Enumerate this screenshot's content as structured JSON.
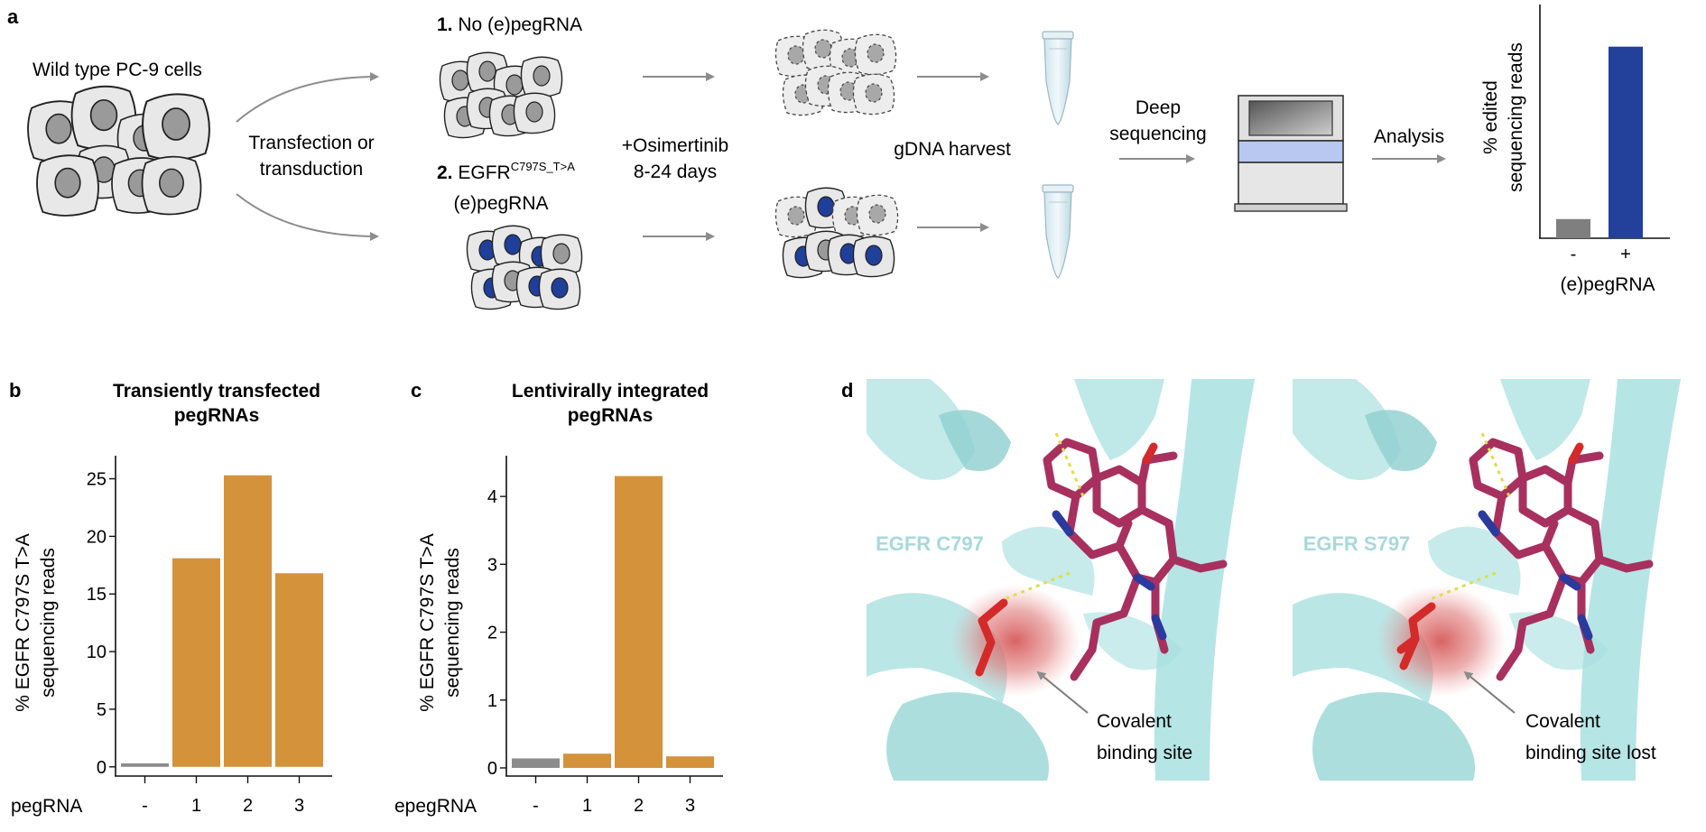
{
  "panel_a": {
    "label": "a",
    "wild_type": "Wild type PC-9 cells",
    "transfection": [
      "Transfection or",
      "transduction"
    ],
    "cond1_num": "1.",
    "cond1": "No (e)pegRNA",
    "cond2_num": "2.",
    "cond2_gene": "EGFR",
    "cond2_sup": "C797S_T>A",
    "cond2_line2": "(e)pegRNA",
    "osimertinib": [
      "+Osimertinib",
      "8-24 days"
    ],
    "gdna": "gDNA harvest",
    "deep_seq": [
      "Deep",
      "sequencing"
    ],
    "analysis": "Analysis",
    "colors": {
      "cell_fill": "#e8e8e8",
      "nucleus_gray": "#9a9a9a",
      "nucleus_blue": "#1f3f9a",
      "arrow": "#8c8c8c"
    }
  },
  "chart_data": [
    {
      "type": "bar",
      "panel": "a",
      "categories": [
        "-",
        "+"
      ],
      "values": [
        10,
        100
      ],
      "colors": [
        "#7f7f7f",
        "#23409a"
      ],
      "ylabel": [
        "% edited",
        "sequencing reads"
      ],
      "xlabel": "(e)pegRNA",
      "ylim": [
        0,
        122
      ],
      "y_ticks_shown": false
    },
    {
      "type": "bar",
      "panel": "b",
      "title": [
        "Transiently transfected",
        "pegRNAs"
      ],
      "categories": [
        "-",
        "1",
        "2",
        "3"
      ],
      "values": [
        0.3,
        18.1,
        25.3,
        16.8
      ],
      "colors": [
        "#8c8c8c",
        "#d4923a",
        "#d4923a",
        "#d4923a"
      ],
      "xlabel": "pegRNA",
      "ylabel": [
        "% EGFR C797S T>A",
        "sequencing reads"
      ],
      "ylim": [
        -0.8,
        27
      ],
      "yticks": [
        0,
        5,
        10,
        15,
        20,
        25
      ]
    },
    {
      "type": "bar",
      "panel": "c",
      "title": [
        "Lentivirally integrated",
        "pegRNAs"
      ],
      "categories": [
        "-",
        "1",
        "2",
        "3"
      ],
      "values": [
        0.14,
        0.21,
        4.3,
        0.17
      ],
      "colors": [
        "#8c8c8c",
        "#d4923a",
        "#d4923a",
        "#d4923a"
      ],
      "xlabel": "epegRNA",
      "ylabel": [
        "% EGFR C797S T>A",
        "sequencing reads"
      ],
      "ylim": [
        -0.12,
        4.6
      ],
      "yticks": [
        0,
        1,
        2,
        3,
        4
      ]
    }
  ],
  "panel_d": {
    "label": "d",
    "left_residue": "EGFR C797",
    "left_caption": [
      "Covalent",
      "binding site"
    ],
    "right_residue": "EGFR S797",
    "right_caption": [
      "Covalent",
      "binding site lost"
    ],
    "colors": {
      "ribbon": "#a9e0e0",
      "ligand": "#a8305e",
      "nitrogen": "#2b3a9c",
      "oxygen": "#d42a2a",
      "glow": "#d65a5a"
    }
  },
  "labels": {
    "b": "b",
    "c": "c"
  }
}
